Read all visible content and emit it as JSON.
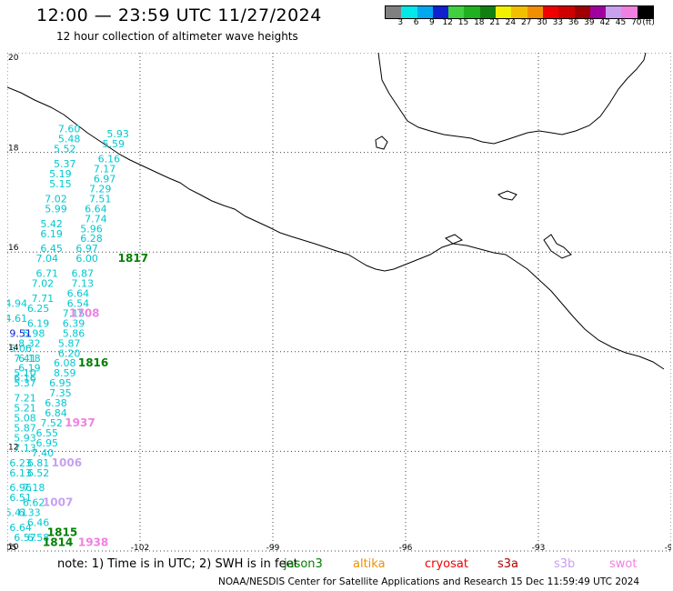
{
  "title": "12:00 — 23:59 UTC 11/27/2024",
  "subtitle": "12 hour collection of altimeter wave heights",
  "colorbar": {
    "colors": [
      "#808080",
      "#00e8e8",
      "#00a8f0",
      "#1020d0",
      "#40d040",
      "#20b020",
      "#108010",
      "#f0f000",
      "#f0c000",
      "#f09000",
      "#f00000",
      "#d00000",
      "#a00000",
      "#a000a0",
      "#c8a0f0",
      "#f080e0",
      "#000000"
    ],
    "labels": [
      "3",
      "6",
      "9",
      "12",
      "15",
      "18",
      "21",
      "24",
      "27",
      "30",
      "33",
      "36",
      "39",
      "42",
      "45",
      "70",
      "(ft)"
    ]
  },
  "axes": {
    "x_ticks": [
      "-105",
      "-102",
      "-99",
      "-96",
      "-93",
      "-90"
    ],
    "y_ticks": [
      "20",
      "18",
      "16",
      "14",
      "12",
      "10"
    ]
  },
  "chart_data": {
    "type": "scatter",
    "x_range": [
      -105,
      -90
    ],
    "y_range": [
      10,
      20
    ],
    "series": [
      {
        "name": "jason3",
        "color": "#008000"
      },
      {
        "name": "altika",
        "color": "#f09000"
      },
      {
        "name": "cryosat",
        "color": "#f00000"
      },
      {
        "name": "s3a",
        "color": "#b00000"
      },
      {
        "name": "s3b",
        "color": "#c8a0f0"
      },
      {
        "name": "swot",
        "color": "#f080e0"
      }
    ],
    "annotations": [
      {
        "label": "1817",
        "lon": -102.5,
        "lat": 15.8,
        "color": "#008000"
      },
      {
        "label": "1816",
        "lon": -103.4,
        "lat": 13.7,
        "color": "#008000"
      },
      {
        "label": "1815",
        "lon": -104.1,
        "lat": 10.3,
        "color": "#008000"
      },
      {
        "label": "1814",
        "lon": -104.2,
        "lat": 10.1,
        "color": "#008000"
      },
      {
        "label": "1708",
        "lon": -103.6,
        "lat": 14.7,
        "color": "#f080e0"
      },
      {
        "label": "1937",
        "lon": -103.7,
        "lat": 12.5,
        "color": "#f080e0"
      },
      {
        "label": "1938",
        "lon": -103.4,
        "lat": 10.1,
        "color": "#f080e0"
      },
      {
        "label": "1006",
        "lon": -104.0,
        "lat": 11.7,
        "color": "#c8a0f0"
      },
      {
        "label": "1007",
        "lon": -104.2,
        "lat": 10.9,
        "color": "#c8a0f0"
      }
    ],
    "points": [
      {
        "lon": -103.6,
        "lat": 18.4,
        "v": "7.60",
        "c": "#00c8d0"
      },
      {
        "lon": -103.6,
        "lat": 18.2,
        "v": "5.48",
        "c": "#00c8d0"
      },
      {
        "lon": -103.7,
        "lat": 18.0,
        "v": "5.52",
        "c": "#00c8d0"
      },
      {
        "lon": -103.7,
        "lat": 17.7,
        "v": "5.37",
        "c": "#00c8d0"
      },
      {
        "lon": -103.8,
        "lat": 17.5,
        "v": "5.19",
        "c": "#00c8d0"
      },
      {
        "lon": -103.8,
        "lat": 17.3,
        "v": "5.15",
        "c": "#00c8d0"
      },
      {
        "lon": -103.9,
        "lat": 17.0,
        "v": "7.02",
        "c": "#00c8d0"
      },
      {
        "lon": -103.9,
        "lat": 16.8,
        "v": "5.99",
        "c": "#00c8d0"
      },
      {
        "lon": -104.0,
        "lat": 16.5,
        "v": "5.42",
        "c": "#00c8d0"
      },
      {
        "lon": -104.0,
        "lat": 16.3,
        "v": "6.19",
        "c": "#00c8d0"
      },
      {
        "lon": -104.0,
        "lat": 16.0,
        "v": "6.45",
        "c": "#00c8d0"
      },
      {
        "lon": -104.1,
        "lat": 15.8,
        "v": "7.04",
        "c": "#00c8d0"
      },
      {
        "lon": -104.1,
        "lat": 15.5,
        "v": "6.71",
        "c": "#00c8d0"
      },
      {
        "lon": -104.2,
        "lat": 15.3,
        "v": "7.02",
        "c": "#00c8d0"
      },
      {
        "lon": -104.2,
        "lat": 15.0,
        "v": "7.71",
        "c": "#00c8d0"
      },
      {
        "lon": -104.3,
        "lat": 14.8,
        "v": "6.25",
        "c": "#00c8d0"
      },
      {
        "lon": -104.3,
        "lat": 14.5,
        "v": "6.19",
        "c": "#00c8d0"
      },
      {
        "lon": -104.4,
        "lat": 14.3,
        "v": "5.98",
        "c": "#00c8d0"
      },
      {
        "lon": -104.5,
        "lat": 14.1,
        "v": "8.32",
        "c": "#00c8d0"
      },
      {
        "lon": -104.5,
        "lat": 13.8,
        "v": "6.18",
        "c": "#00c8d0"
      },
      {
        "lon": -104.5,
        "lat": 13.6,
        "v": "6.19",
        "c": "#00c8d0"
      },
      {
        "lon": -104.6,
        "lat": 13.4,
        "v": "6.16",
        "c": "#00c8d0"
      },
      {
        "lon": -102.5,
        "lat": 18.3,
        "v": "5.93",
        "c": "#00c8d0"
      },
      {
        "lon": -102.6,
        "lat": 18.1,
        "v": "5.59",
        "c": "#00c8d0"
      },
      {
        "lon": -102.7,
        "lat": 17.8,
        "v": "6.16",
        "c": "#00c8d0"
      },
      {
        "lon": -102.8,
        "lat": 17.6,
        "v": "7.17",
        "c": "#00c8d0"
      },
      {
        "lon": -102.8,
        "lat": 17.4,
        "v": "6.97",
        "c": "#00c8d0"
      },
      {
        "lon": -102.9,
        "lat": 17.2,
        "v": "7.29",
        "c": "#00c8d0"
      },
      {
        "lon": -102.9,
        "lat": 17.0,
        "v": "7.51",
        "c": "#00c8d0"
      },
      {
        "lon": -103.0,
        "lat": 16.8,
        "v": "6.64",
        "c": "#00c8d0"
      },
      {
        "lon": -103.0,
        "lat": 16.6,
        "v": "7.74",
        "c": "#00c8d0"
      },
      {
        "lon": -103.1,
        "lat": 16.4,
        "v": "5.96",
        "c": "#00c8d0"
      },
      {
        "lon": -103.1,
        "lat": 16.2,
        "v": "6.28",
        "c": "#00c8d0"
      },
      {
        "lon": -103.2,
        "lat": 16.0,
        "v": "6.97",
        "c": "#00c8d0"
      },
      {
        "lon": -103.2,
        "lat": 15.8,
        "v": "6.00",
        "c": "#00c8d0"
      },
      {
        "lon": -103.3,
        "lat": 15.5,
        "v": "6.87",
        "c": "#00c8d0"
      },
      {
        "lon": -103.3,
        "lat": 15.3,
        "v": "7.13",
        "c": "#00c8d0"
      },
      {
        "lon": -103.4,
        "lat": 15.1,
        "v": "6.64",
        "c": "#00c8d0"
      },
      {
        "lon": -103.4,
        "lat": 14.9,
        "v": "6.54",
        "c": "#00c8d0"
      },
      {
        "lon": -103.5,
        "lat": 14.7,
        "v": "7.15",
        "c": "#00c8d0"
      },
      {
        "lon": -103.5,
        "lat": 14.5,
        "v": "6.39",
        "c": "#00c8d0"
      },
      {
        "lon": -103.5,
        "lat": 14.3,
        "v": "5.86",
        "c": "#00c8d0"
      },
      {
        "lon": -103.6,
        "lat": 14.1,
        "v": "5.87",
        "c": "#00c8d0"
      },
      {
        "lon": -103.6,
        "lat": 13.9,
        "v": "6.20",
        "c": "#00c8d0"
      },
      {
        "lon": -103.7,
        "lat": 13.7,
        "v": "6.08",
        "c": "#00c8d0"
      },
      {
        "lon": -103.7,
        "lat": 13.5,
        "v": "8.59",
        "c": "#00c8d0"
      },
      {
        "lon": -103.8,
        "lat": 13.3,
        "v": "6.95",
        "c": "#00c8d0"
      },
      {
        "lon": -103.8,
        "lat": 13.1,
        "v": "7.35",
        "c": "#00c8d0"
      },
      {
        "lon": -103.9,
        "lat": 12.9,
        "v": "6.38",
        "c": "#00c8d0"
      },
      {
        "lon": -103.9,
        "lat": 12.7,
        "v": "6.84",
        "c": "#00c8d0"
      },
      {
        "lon": -104.0,
        "lat": 12.5,
        "v": "7.52",
        "c": "#00c8d0"
      },
      {
        "lon": -104.1,
        "lat": 12.3,
        "v": "6.55",
        "c": "#00c8d0"
      },
      {
        "lon": -104.1,
        "lat": 12.1,
        "v": "6.95",
        "c": "#00c8d0"
      },
      {
        "lon": -104.2,
        "lat": 11.9,
        "v": "7.40",
        "c": "#00c8d0"
      },
      {
        "lon": -104.3,
        "lat": 11.7,
        "v": "6.81",
        "c": "#00c8d0"
      },
      {
        "lon": -104.3,
        "lat": 11.5,
        "v": "6.52",
        "c": "#00c8d0"
      },
      {
        "lon": -104.4,
        "lat": 11.2,
        "v": "7.18",
        "c": "#00c8d0"
      },
      {
        "lon": -104.4,
        "lat": 10.9,
        "v": "6.62",
        "c": "#00c8d0"
      },
      {
        "lon": -104.5,
        "lat": 10.7,
        "v": "6.33",
        "c": "#00c8d0"
      },
      {
        "lon": -104.3,
        "lat": 10.5,
        "v": "6.46",
        "c": "#00c8d0"
      },
      {
        "lon": -104.8,
        "lat": 14.9,
        "v": "4.94",
        "c": "#00c8d0"
      },
      {
        "lon": -104.8,
        "lat": 14.6,
        "v": "4.61",
        "c": "#00c8d0"
      },
      {
        "lon": -104.7,
        "lat": 14.3,
        "v": "9.51",
        "c": "#1020d0"
      },
      {
        "lon": -104.7,
        "lat": 14.0,
        "v": "5.06",
        "c": "#00c8d0"
      },
      {
        "lon": -104.6,
        "lat": 13.8,
        "v": "7.41",
        "c": "#00c8d0"
      },
      {
        "lon": -104.6,
        "lat": 13.5,
        "v": "5.10",
        "c": "#00c8d0"
      },
      {
        "lon": -104.6,
        "lat": 13.3,
        "v": "5.37",
        "c": "#00c8d0"
      },
      {
        "lon": -104.6,
        "lat": 13.0,
        "v": "7.21",
        "c": "#00c8d0"
      },
      {
        "lon": -104.6,
        "lat": 12.8,
        "v": "5.21",
        "c": "#00c8d0"
      },
      {
        "lon": -104.6,
        "lat": 12.6,
        "v": "5.08",
        "c": "#00c8d0"
      },
      {
        "lon": -104.6,
        "lat": 12.4,
        "v": "5.87",
        "c": "#00c8d0"
      },
      {
        "lon": -104.6,
        "lat": 12.2,
        "v": "5.93",
        "c": "#00c8d0"
      },
      {
        "lon": -104.6,
        "lat": 12.0,
        "v": "7.13",
        "c": "#00c8d0"
      },
      {
        "lon": -104.7,
        "lat": 11.7,
        "v": "6.23",
        "c": "#00c8d0"
      },
      {
        "lon": -104.7,
        "lat": 11.5,
        "v": "6.13",
        "c": "#00c8d0"
      },
      {
        "lon": -104.7,
        "lat": 11.2,
        "v": "6.96",
        "c": "#00c8d0"
      },
      {
        "lon": -104.7,
        "lat": 11.0,
        "v": "6.51",
        "c": "#00c8d0"
      },
      {
        "lon": -104.8,
        "lat": 10.7,
        "v": "6.41",
        "c": "#00c8d0"
      },
      {
        "lon": -104.7,
        "lat": 10.4,
        "v": "6.64",
        "c": "#00c8d0"
      },
      {
        "lon": -104.6,
        "lat": 10.2,
        "v": "6.57",
        "c": "#00c8d0"
      },
      {
        "lon": -104.3,
        "lat": 10.2,
        "v": "6.58",
        "c": "#00c8d0"
      }
    ]
  },
  "legend": {
    "note": "note:  1) Time is in UTC;  2) SWH is in feet",
    "sats": [
      {
        "label": "jason3",
        "color": "#008000"
      },
      {
        "label": "altika",
        "color": "#f09000"
      },
      {
        "label": "cryosat",
        "color": "#f00000"
      },
      {
        "label": "s3a",
        "color": "#b00000"
      },
      {
        "label": "s3b",
        "color": "#c8a0f0"
      },
      {
        "label": "swot",
        "color": "#f080e0"
      }
    ]
  },
  "credit": "NOAA/NESDIS Center for Satellite Applications and Research    15 Dec 11:59:49 UTC 2024"
}
